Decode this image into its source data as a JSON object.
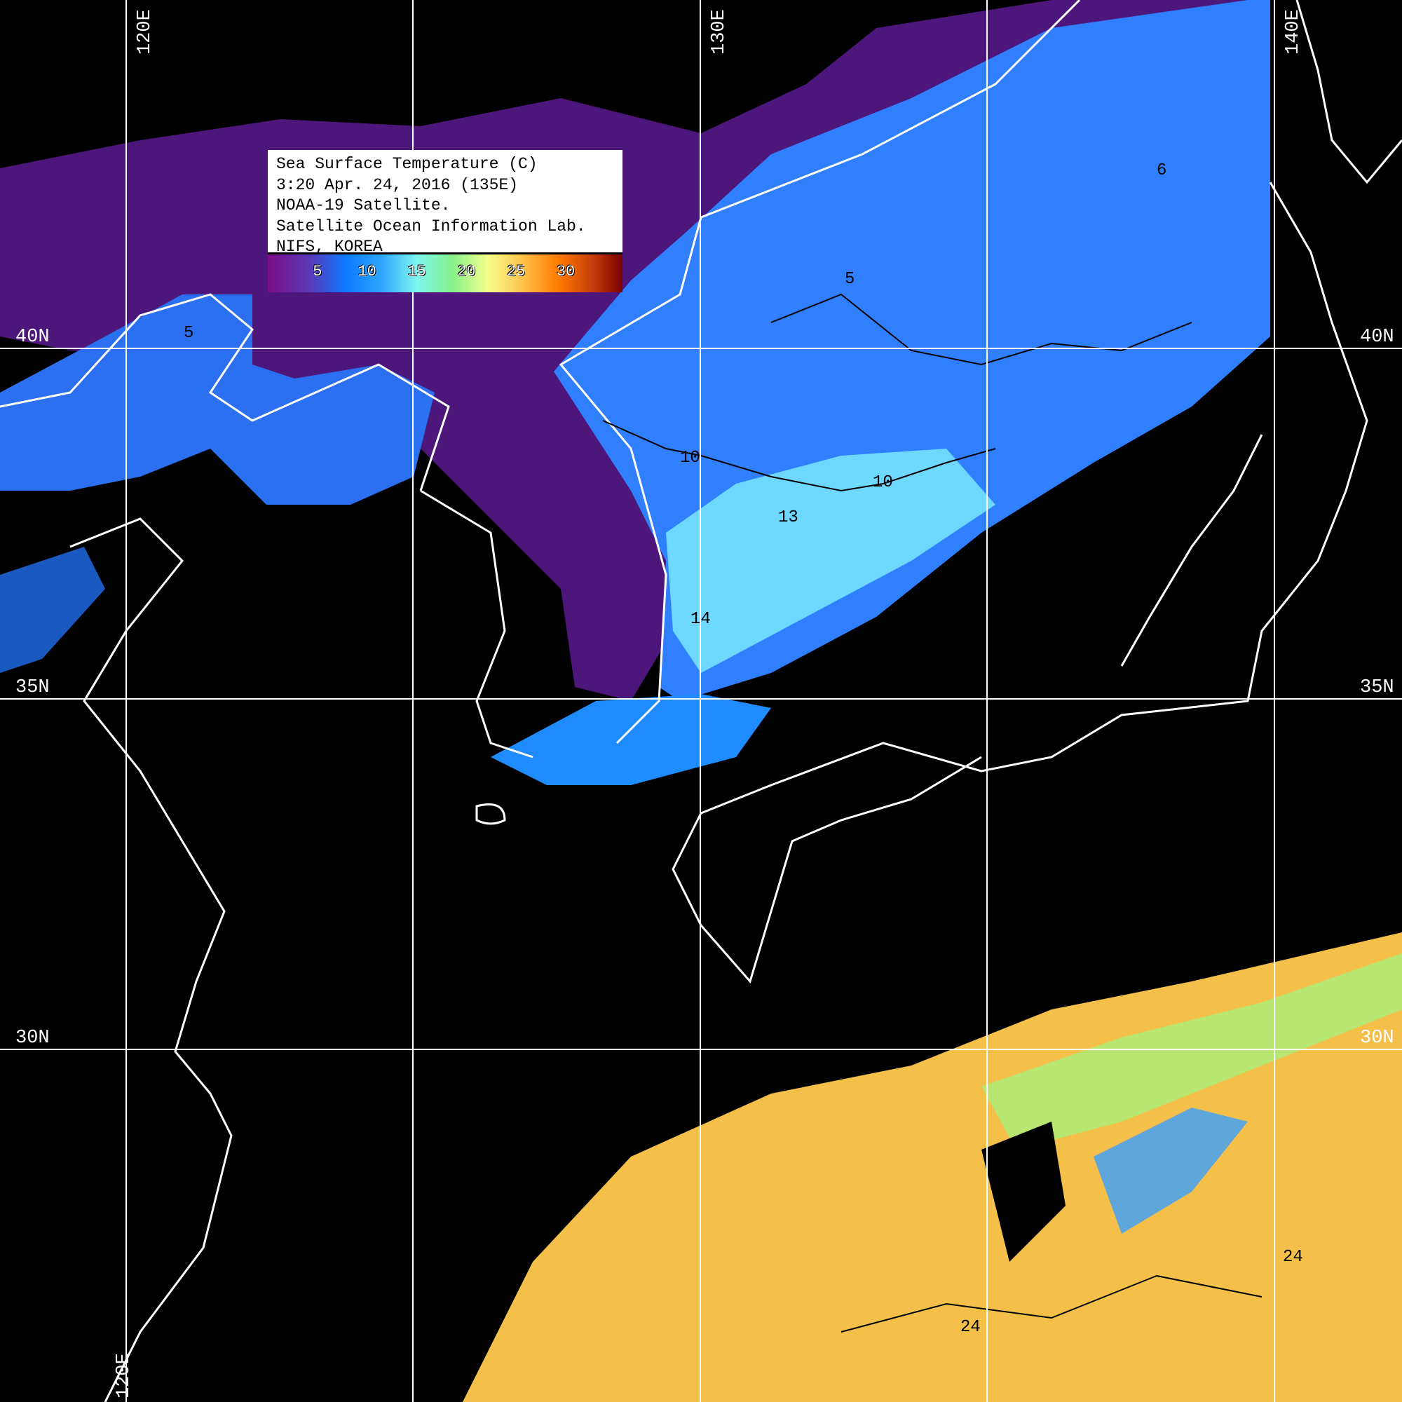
{
  "legend": {
    "lines": [
      "Sea Surface Temperature (C)",
      "3:20 Apr. 24, 2016 (135E)",
      "NOAA-19 Satellite.",
      "Satellite Ocean Information Lab.",
      "NIFS, KOREA"
    ],
    "colorbar_ticks": [
      "5",
      "10",
      "15",
      "20",
      "25",
      "30"
    ],
    "colorbar_colors": [
      "#7a0e86",
      "#0a7aff",
      "#7ff5f0",
      "#86f28a",
      "#f4ff8c",
      "#ff7a00",
      "#7a0000"
    ]
  },
  "grid": {
    "longitudes": [
      "120E",
      "130E",
      "140E"
    ],
    "latitudes": [
      "40N",
      "35N",
      "30N"
    ],
    "bottom_longitude": "120E"
  },
  "contour_labels": [
    "5",
    "5",
    "10",
    "10",
    "13",
    "14",
    "6",
    "24",
    "24"
  ]
}
